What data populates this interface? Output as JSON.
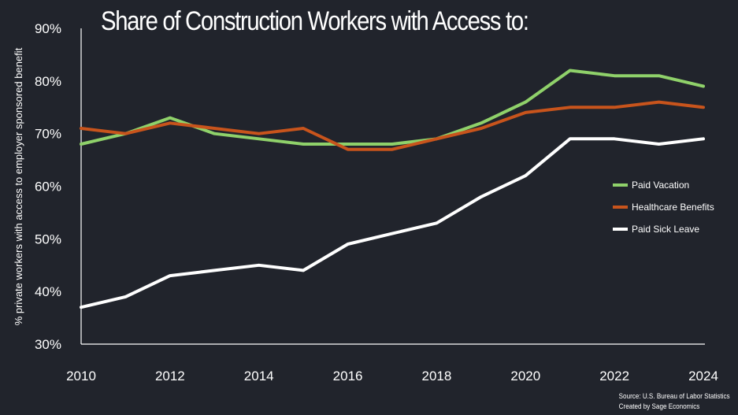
{
  "chart_data": {
    "type": "line",
    "title": "Share of Construction Workers with Access to:",
    "ylabel": "% private workers with access to employer sponsored benefit",
    "xlabel": "",
    "x": [
      2010,
      2011,
      2012,
      2013,
      2014,
      2015,
      2016,
      2017,
      2018,
      2019,
      2020,
      2021,
      2022,
      2023,
      2024
    ],
    "x_ticks": [
      "2010",
      "2012",
      "2014",
      "2016",
      "2018",
      "2020",
      "2022",
      "2024"
    ],
    "y_ticks": [
      "30%",
      "40%",
      "50%",
      "60%",
      "70%",
      "80%",
      "90%"
    ],
    "ylim": [
      30,
      90
    ],
    "xlim": [
      2010,
      2024
    ],
    "grid": false,
    "legend_position": "right",
    "series": [
      {
        "name": "Paid Vacation",
        "color": "#8fd16a",
        "values": [
          68,
          70,
          73,
          70,
          69,
          68,
          68,
          68,
          69,
          72,
          76,
          82,
          81,
          81,
          79
        ]
      },
      {
        "name": "Healthcare Benefits",
        "color": "#c8541c",
        "values": [
          71,
          70,
          72,
          71,
          70,
          71,
          67,
          67,
          69,
          71,
          74,
          75,
          75,
          76,
          75
        ]
      },
      {
        "name": "Paid Sick Leave",
        "color": "#ffffff",
        "values": [
          37,
          39,
          43,
          44,
          45,
          44,
          49,
          51,
          53,
          58,
          62,
          69,
          69,
          68,
          69
        ]
      }
    ]
  },
  "source": {
    "line1": "Source: U.S. Bureau of Labor Statistics",
    "line2": "Created by Sage Economics"
  }
}
